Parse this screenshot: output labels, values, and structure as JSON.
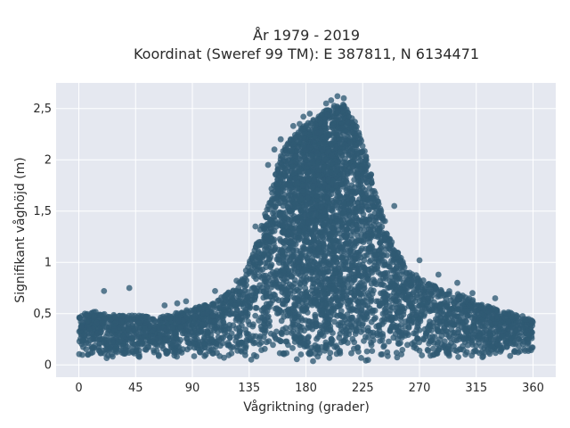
{
  "chart_data": {
    "type": "scatter",
    "title": "År 1979 - 2019",
    "subtitle": "Koordinat (Sweref 99 TM): E 387811, N 6134471",
    "xlabel": "Vågriktning (grader)",
    "ylabel": "Signifikant våghöjd (m)",
    "xlim": [
      -18,
      378
    ],
    "ylim": [
      -0.12,
      2.75
    ],
    "xticks": [
      0,
      45,
      90,
      135,
      180,
      225,
      270,
      315,
      360
    ],
    "xtick_labels": [
      "0",
      "45",
      "90",
      "135",
      "180",
      "225",
      "270",
      "315",
      "360"
    ],
    "yticks": [
      0,
      0.5,
      1,
      1.5,
      2,
      2.5
    ],
    "ytick_labels": [
      "0",
      "0,5",
      "1",
      "1,5",
      "2",
      "2,5"
    ],
    "grid": true,
    "marker_color": "#2f5a73",
    "plot_background": "#e5e8f0",
    "envelope": {
      "x": [
        0,
        15,
        30,
        45,
        60,
        75,
        90,
        105,
        120,
        130,
        140,
        150,
        160,
        170,
        180,
        190,
        200,
        210,
        220,
        230,
        240,
        250,
        260,
        270,
        285,
        300,
        315,
        330,
        345,
        360
      ],
      "max": [
        0.5,
        0.52,
        0.48,
        0.5,
        0.45,
        0.5,
        0.55,
        0.6,
        0.72,
        0.85,
        1.15,
        1.6,
        2.05,
        2.25,
        2.35,
        2.42,
        2.55,
        2.55,
        2.35,
        1.95,
        1.5,
        1.15,
        0.95,
        0.85,
        0.75,
        0.7,
        0.62,
        0.55,
        0.5,
        0.45
      ],
      "min": [
        0.08,
        0.06,
        0.06,
        0.06,
        0.07,
        0.07,
        0.07,
        0.05,
        0.04,
        0.03,
        0.03,
        0.03,
        0.02,
        0.02,
        0.02,
        0.02,
        0.02,
        0.02,
        0.02,
        0.02,
        0.03,
        0.03,
        0.03,
        0.03,
        0.04,
        0.05,
        0.05,
        0.06,
        0.07,
        0.1
      ]
    },
    "outliers": {
      "x": [
        20,
        40,
        68,
        78,
        85,
        108,
        125,
        140,
        150,
        155,
        160,
        170,
        175,
        178,
        183,
        196,
        200,
        205,
        210,
        250,
        270,
        285,
        300,
        312,
        330
      ],
      "y": [
        0.72,
        0.75,
        0.58,
        0.6,
        0.62,
        0.72,
        0.82,
        1.35,
        1.95,
        2.1,
        2.2,
        2.33,
        2.35,
        2.42,
        2.45,
        2.55,
        2.58,
        2.62,
        2.6,
        1.55,
        1.02,
        0.88,
        0.8,
        0.7,
        0.65
      ]
    },
    "n_points": 5200
  }
}
